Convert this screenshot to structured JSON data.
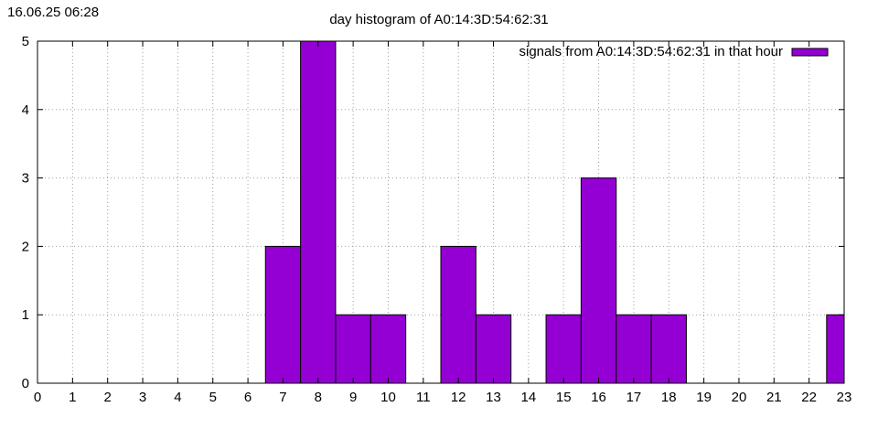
{
  "timestamp": "16.06.25 06:28",
  "colors": {
    "bar_fill": "#9400d3",
    "bar_stroke": "#000000",
    "grid": "#a0a0a0",
    "background": "#ffffff"
  },
  "chart_data": {
    "type": "bar",
    "title": "day histogram of A0:14:3D:54:62:31",
    "xlabel": "",
    "ylabel": "",
    "categories": [
      "0",
      "1",
      "2",
      "3",
      "4",
      "5",
      "6",
      "7",
      "8",
      "9",
      "10",
      "11",
      "12",
      "13",
      "14",
      "15",
      "16",
      "17",
      "18",
      "19",
      "20",
      "21",
      "22",
      "23"
    ],
    "series": [
      {
        "name": "signals from A0:14:3D:54:62:31 in that hour",
        "values": [
          0,
          0,
          0,
          0,
          0,
          0,
          0,
          2,
          5,
          1,
          1,
          0,
          2,
          1,
          0,
          1,
          3,
          1,
          1,
          0,
          0,
          0,
          0,
          1
        ]
      }
    ],
    "xlim": [
      0,
      23
    ],
    "ylim": [
      0,
      5
    ],
    "yticks": [
      "0",
      "1",
      "2",
      "3",
      "4",
      "5"
    ],
    "grid": true,
    "legend_position": "top-right"
  }
}
